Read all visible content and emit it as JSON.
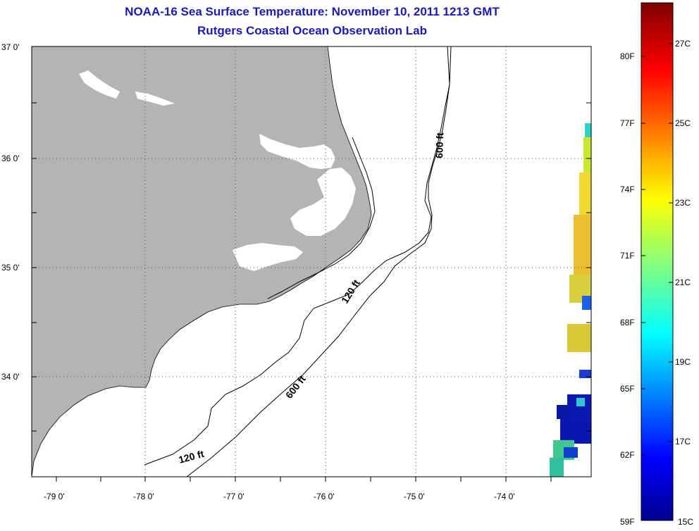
{
  "header": {
    "title": "NOAA-16 Sea Surface Temperature:  November 10, 2011 1213 GMT",
    "subtitle": "Rutgers Coastal Ocean Observation Lab"
  },
  "colors": {
    "title": "#1a1ab4",
    "land": "#b4b4b4",
    "water": "#ffffff",
    "grid": "#555555"
  },
  "map": {
    "lat_labels": [
      "37 0'",
      "36 0'",
      "35 0'",
      "34 0'"
    ],
    "lon_labels": [
      "-79 0'",
      "-78 0'",
      "-77 0'",
      "-76 0'",
      "-75 0'",
      "-74 0'"
    ],
    "contour_labels": [
      "600 ft",
      "120 ft",
      "600 ft",
      "120 ft"
    ]
  },
  "colorbar": {
    "colormap": "jet",
    "f_labels": [
      "80F",
      "77F",
      "74F",
      "71F",
      "68F",
      "65F",
      "62F",
      "59F"
    ],
    "c_labels": [
      "27C",
      "25C",
      "23C",
      "21C",
      "19C",
      "17C",
      "15C"
    ]
  }
}
